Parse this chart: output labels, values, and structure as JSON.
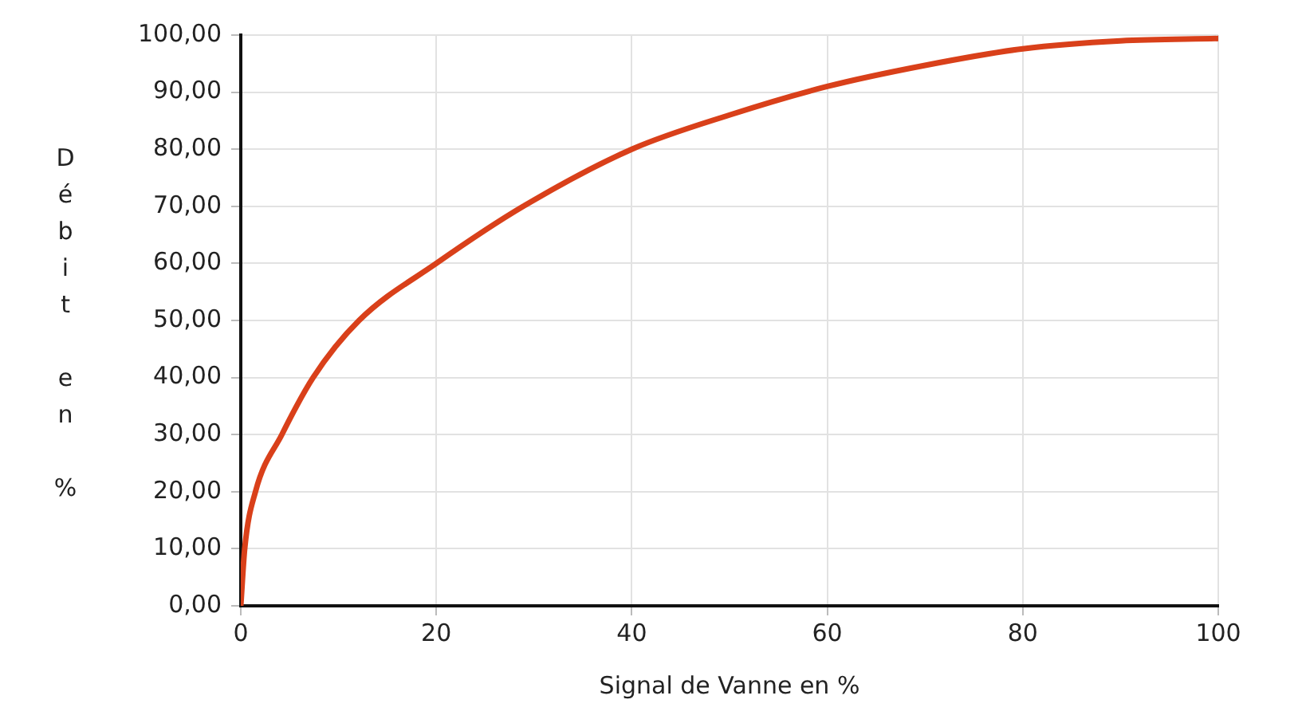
{
  "chart_data": {
    "type": "line",
    "xlabel": "Signal de Vanne en %",
    "ylabel": "Débit en %",
    "x": [
      0,
      0.4,
      1.5,
      4.2,
      7.4,
      12.1,
      20,
      28.9,
      40,
      50,
      60,
      70,
      80,
      90,
      100
    ],
    "series": [
      {
        "color": "#d9401a",
        "values": [
          0,
          10,
          20,
          30,
          40,
          50,
          60,
          70,
          80,
          86,
          91,
          94.7,
          97.6,
          99,
          99.4
        ]
      }
    ],
    "xlim": [
      0,
      100
    ],
    "xticks": [
      0,
      20,
      40,
      60,
      80,
      100
    ],
    "ylim": [
      0,
      100
    ],
    "yticks": [
      {
        "value": 0,
        "label": "0,00"
      },
      {
        "value": 10,
        "label": "10,00"
      },
      {
        "value": 20,
        "label": "20,00"
      },
      {
        "value": 30,
        "label": "30,00"
      },
      {
        "value": 40,
        "label": "40,00"
      },
      {
        "value": 50,
        "label": "50,00"
      },
      {
        "value": 60,
        "label": "60,00"
      },
      {
        "value": 70,
        "label": "70,00"
      },
      {
        "value": 80,
        "label": "80,00"
      },
      {
        "value": 90,
        "label": "90,00"
      },
      {
        "value": 100,
        "label": "100,00"
      }
    ],
    "grid": true,
    "legend": false,
    "marker": "none",
    "line_style": "solid"
  }
}
